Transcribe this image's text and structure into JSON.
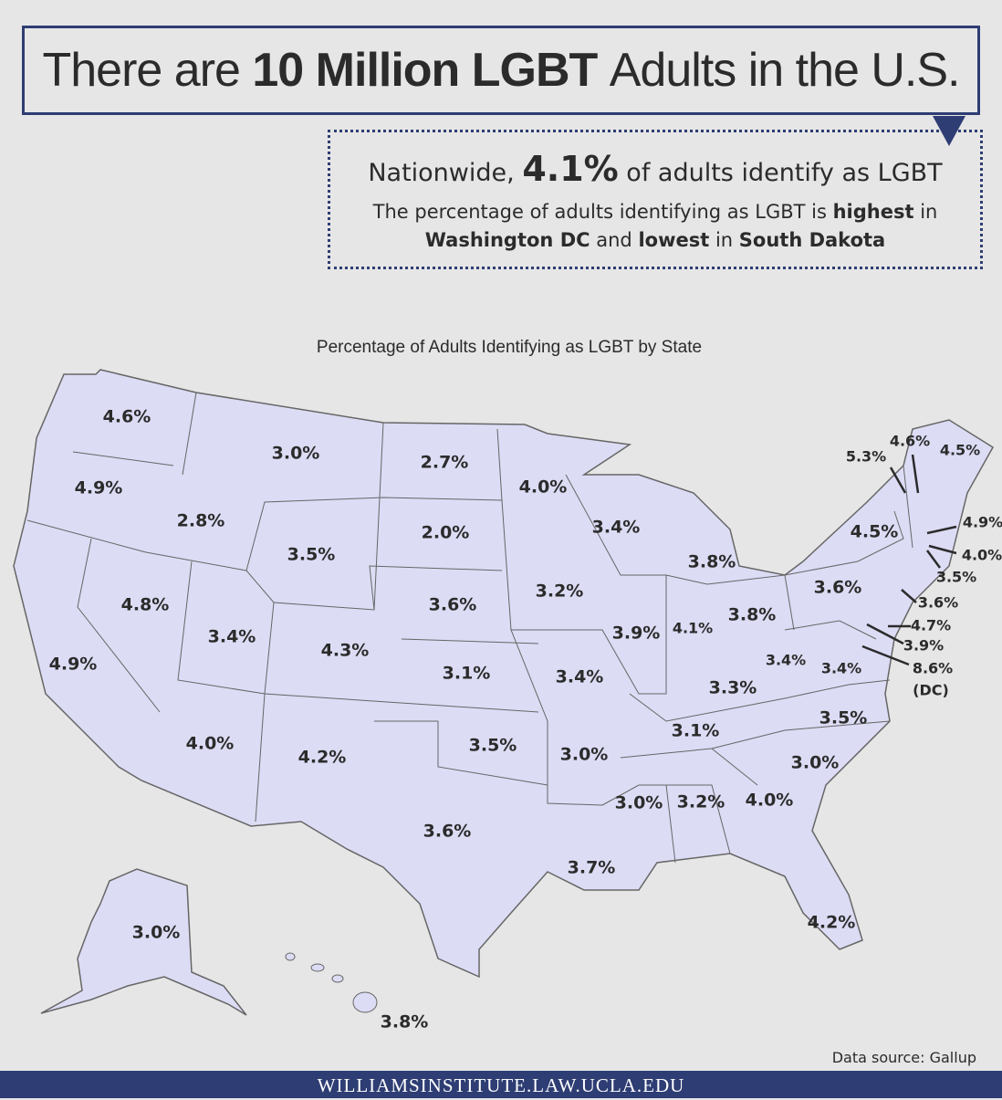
{
  "header": {
    "title": [
      "There are",
      "10 Million LGBT",
      "Adults in the U.S."
    ]
  },
  "summary": {
    "line1": [
      "Nationwide,",
      "4.1%",
      "of adults identify as LGBT"
    ],
    "line2": [
      "The percentage of adults identifying as LGBT is",
      "highest",
      "in",
      "Washington DC",
      "and",
      "lowest",
      "in",
      "South Dakota"
    ]
  },
  "map": {
    "title": "Percentage of Adults Identifying as LGBT by State",
    "labels": [
      "4.6%",
      "4.9%",
      "4.9%",
      "2.8%",
      "4.8%",
      "3.0%",
      "3.5%",
      "3.4%",
      "4.0%",
      "4.3%",
      "4.2%",
      "2.7%",
      "2.0%",
      "3.6%",
      "3.1%",
      "3.5%",
      "3.6%",
      "4.0%",
      "3.2%",
      "3.4%",
      "3.0%",
      "3.7%",
      "3.4%",
      "3.9%",
      "3.8%",
      "4.1%",
      "3.8%",
      "3.3%",
      "3.1%",
      "3.0%",
      "3.2%",
      "4.0%",
      "4.2%",
      "3.0%",
      "3.5%",
      "3.4%",
      "3.4%",
      "3.6%",
      "4.5%",
      "5.3%",
      "4.6%",
      "4.5%",
      "4.9%",
      "4.0%",
      "3.5%",
      "3.6%",
      "4.7%",
      "3.9%",
      "8.6%",
      "(DC)",
      "3.0%",
      "3.8%"
    ]
  },
  "footer": {
    "source": "Data source: Gallup",
    "url": "WILLIAMSINSTITUTE.LAW.UCLA.EDU"
  }
}
